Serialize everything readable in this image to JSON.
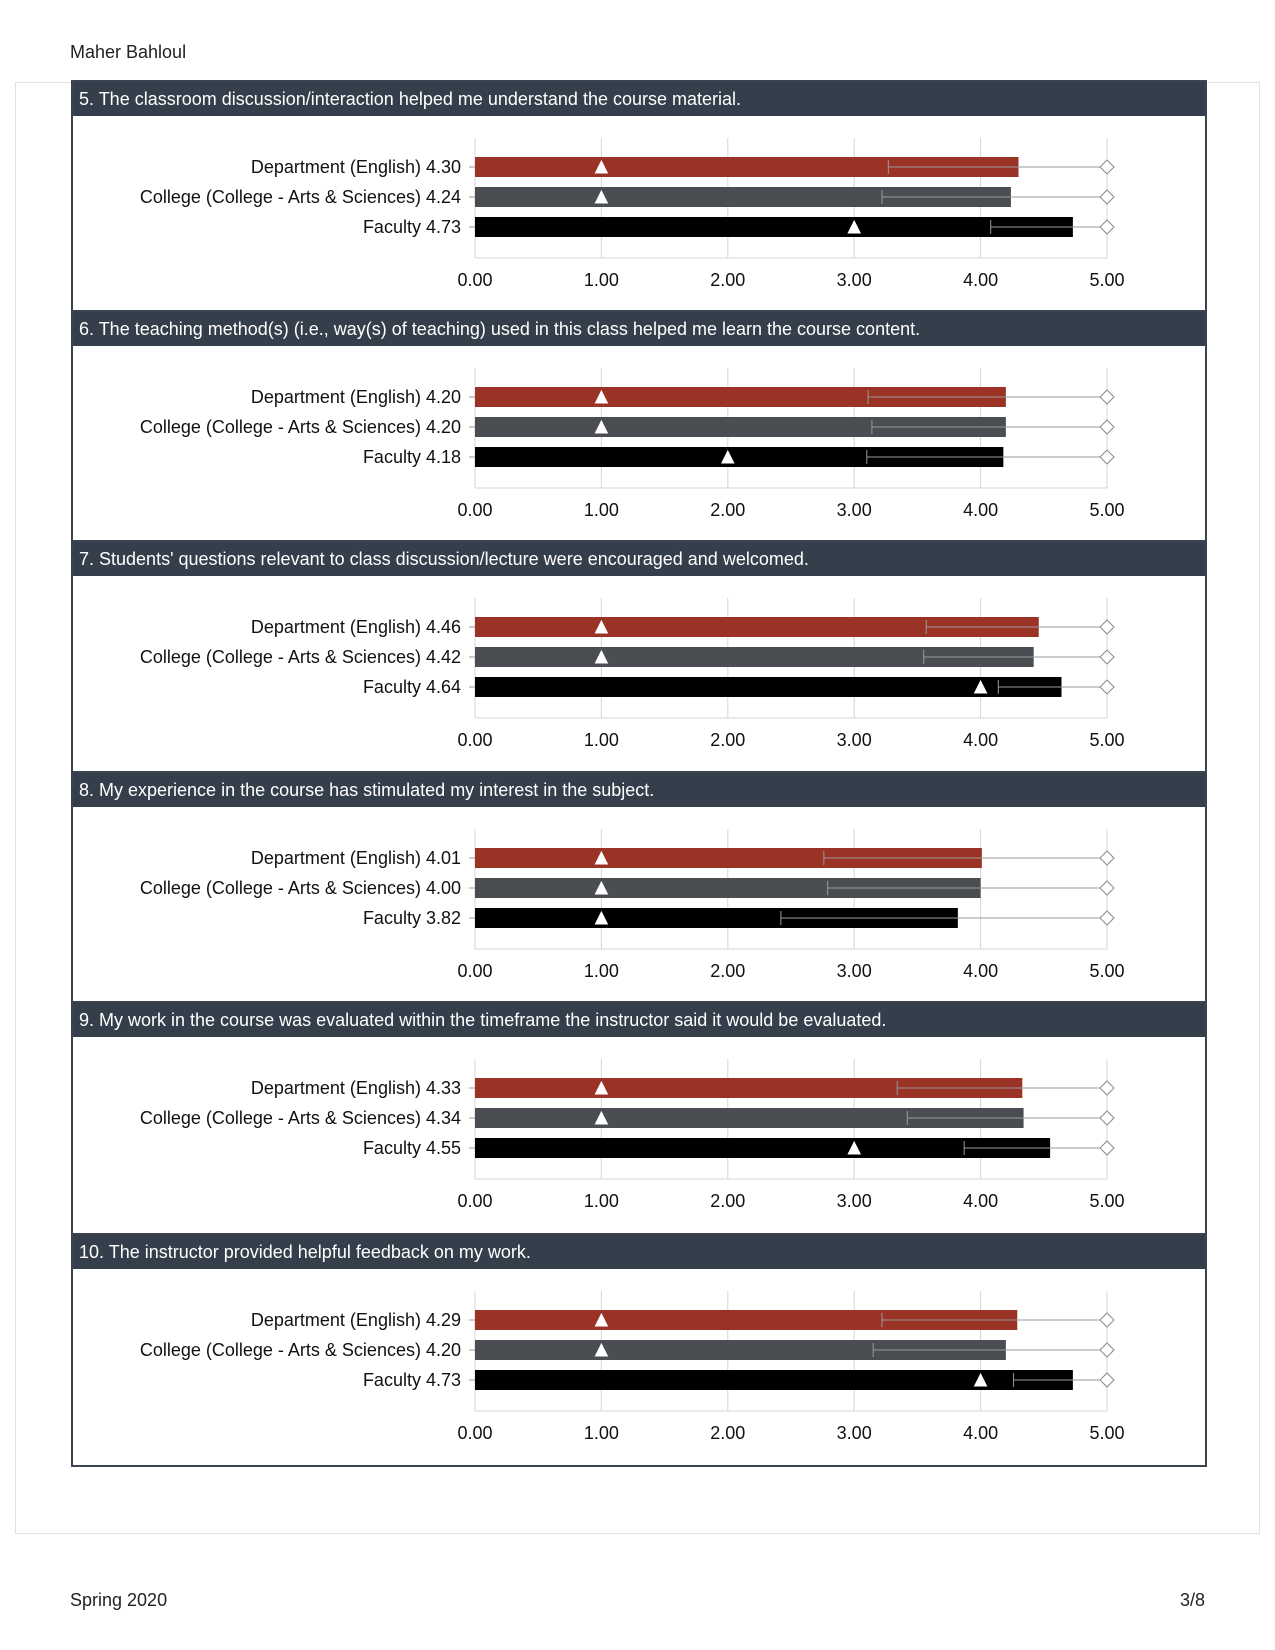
{
  "header": {
    "name": "Maher Bahloul"
  },
  "footer": {
    "term": "Spring 2020",
    "page": "3/8"
  },
  "colors": {
    "department": "#9a3226",
    "college": "#4a4d52",
    "faculty": "#000000",
    "title_bar": "#353f4b"
  },
  "chart_data": [
    {
      "type": "bar",
      "title": "5. The classroom discussion/interaction helped me understand the course material.",
      "categories": [
        "Department (English) 4.30",
        "College (College - Arts & Sciences) 4.24",
        "Faculty 4.73"
      ],
      "values": [
        4.3,
        4.24,
        4.73
      ],
      "min_marker": [
        1.0,
        1.0,
        3.0
      ],
      "max_marker": [
        5.0,
        5.0,
        5.0
      ],
      "error_low": [
        3.27,
        3.22,
        4.08
      ],
      "xlim": [
        0,
        5
      ],
      "xticks": [
        "0.00",
        "1.00",
        "2.00",
        "3.00",
        "4.00",
        "5.00"
      ]
    },
    {
      "type": "bar",
      "title": "6. The teaching method(s) (i.e., way(s) of teaching) used in this class helped me learn the course content.",
      "categories": [
        "Department (English) 4.20",
        "College (College - Arts & Sciences) 4.20",
        "Faculty 4.18"
      ],
      "values": [
        4.2,
        4.2,
        4.18
      ],
      "min_marker": [
        1.0,
        1.0,
        2.0
      ],
      "max_marker": [
        5.0,
        5.0,
        5.0
      ],
      "error_low": [
        3.11,
        3.14,
        3.1
      ],
      "xlim": [
        0,
        5
      ],
      "xticks": [
        "0.00",
        "1.00",
        "2.00",
        "3.00",
        "4.00",
        "5.00"
      ]
    },
    {
      "type": "bar",
      "title": "7. Students' questions relevant to class discussion/lecture were encouraged and welcomed.",
      "categories": [
        "Department (English) 4.46",
        "College (College - Arts & Sciences) 4.42",
        "Faculty 4.64"
      ],
      "values": [
        4.46,
        4.42,
        4.64
      ],
      "min_marker": [
        1.0,
        1.0,
        4.0
      ],
      "max_marker": [
        5.0,
        5.0,
        5.0
      ],
      "error_low": [
        3.57,
        3.55,
        4.14
      ],
      "xlim": [
        0,
        5
      ],
      "xticks": [
        "0.00",
        "1.00",
        "2.00",
        "3.00",
        "4.00",
        "5.00"
      ]
    },
    {
      "type": "bar",
      "title": "8. My experience in the course has stimulated my interest in the subject.",
      "categories": [
        "Department (English) 4.01",
        "College (College - Arts & Sciences) 4.00",
        "Faculty 3.82"
      ],
      "values": [
        4.01,
        4.0,
        3.82
      ],
      "min_marker": [
        1.0,
        1.0,
        1.0
      ],
      "max_marker": [
        5.0,
        5.0,
        5.0
      ],
      "error_low": [
        2.76,
        2.79,
        2.42
      ],
      "xlim": [
        0,
        5
      ],
      "xticks": [
        "0.00",
        "1.00",
        "2.00",
        "3.00",
        "4.00",
        "5.00"
      ]
    },
    {
      "type": "bar",
      "title": "9. My work in the course was evaluated within the timeframe the instructor said it would be evaluated.",
      "categories": [
        "Department (English) 4.33",
        "College (College - Arts & Sciences) 4.34",
        "Faculty 4.55"
      ],
      "values": [
        4.33,
        4.34,
        4.55
      ],
      "min_marker": [
        1.0,
        1.0,
        3.0
      ],
      "max_marker": [
        5.0,
        5.0,
        5.0
      ],
      "error_low": [
        3.34,
        3.42,
        3.87
      ],
      "xlim": [
        0,
        5
      ],
      "xticks": [
        "0.00",
        "1.00",
        "2.00",
        "3.00",
        "4.00",
        "5.00"
      ]
    },
    {
      "type": "bar",
      "title": "10. The instructor provided helpful feedback on my work.",
      "categories": [
        "Department (English) 4.29",
        "College (College - Arts & Sciences) 4.20",
        "Faculty 4.73"
      ],
      "values": [
        4.29,
        4.2,
        4.73
      ],
      "min_marker": [
        1.0,
        1.0,
        4.0
      ],
      "max_marker": [
        5.0,
        5.0,
        5.0
      ],
      "error_low": [
        3.22,
        3.15,
        4.26
      ],
      "xlim": [
        0,
        5
      ],
      "xticks": [
        "0.00",
        "1.00",
        "2.00",
        "3.00",
        "4.00",
        "5.00"
      ]
    }
  ]
}
